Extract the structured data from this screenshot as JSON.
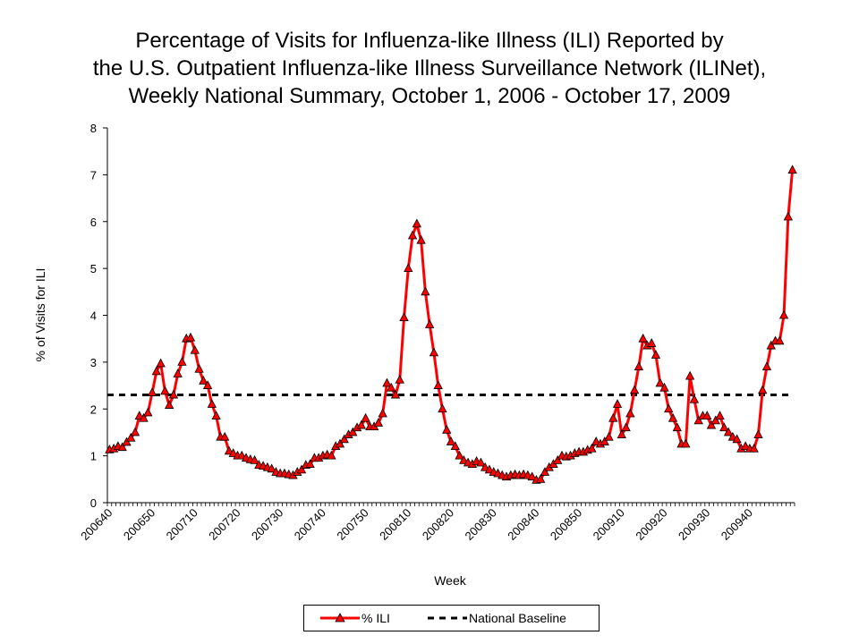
{
  "title": {
    "line1": "Percentage of Visits for Influenza-like Illness (ILI) Reported by",
    "line2": "the U.S. Outpatient Influenza-like Illness Surveillance Network (ILINet),",
    "line3": "Weekly National Summary, October 1, 2006 - October 17, 2009"
  },
  "colors": {
    "ili": "#ff0000",
    "baseline": "#000000"
  },
  "chart_data": {
    "type": "line",
    "title": "Percentage of Visits for Influenza-like Illness (ILI) Reported by the U.S. Outpatient Influenza-like Illness Surveillance Network (ILINet), Weekly National Summary, October 1, 2006 - October 17, 2009",
    "xlabel": "Week",
    "ylabel": "% of Visits for ILI",
    "ylim": [
      0,
      8
    ],
    "yticks": [
      "0",
      "1",
      "2",
      "3",
      "4",
      "5",
      "6",
      "7",
      "8"
    ],
    "xtick_labels": [
      "200640",
      "200650",
      "200710",
      "200720",
      "200730",
      "200740",
      "200750",
      "200810",
      "200820",
      "200830",
      "200840",
      "200850",
      "200910",
      "200920",
      "200930",
      "200940"
    ],
    "grid": false,
    "legend_position": "bottom",
    "series": [
      {
        "name": "% ILI",
        "marker": "triangle",
        "values": [
          1.13,
          1.15,
          1.2,
          1.18,
          1.29,
          1.38,
          1.5,
          1.85,
          1.8,
          1.92,
          2.35,
          2.8,
          2.97,
          2.38,
          2.08,
          2.3,
          2.75,
          3.0,
          3.5,
          3.52,
          3.25,
          2.85,
          2.6,
          2.5,
          2.1,
          1.85,
          1.4,
          1.4,
          1.1,
          1.05,
          1.0,
          1.0,
          0.95,
          0.92,
          0.9,
          0.8,
          0.78,
          0.75,
          0.72,
          0.65,
          0.62,
          0.62,
          0.6,
          0.58,
          0.65,
          0.7,
          0.8,
          0.82,
          0.95,
          0.95,
          1.0,
          1.02,
          1.0,
          1.2,
          1.25,
          1.35,
          1.45,
          1.5,
          1.6,
          1.65,
          1.8,
          1.62,
          1.62,
          1.7,
          1.9,
          2.55,
          2.45,
          2.3,
          2.62,
          3.95,
          5.0,
          5.7,
          5.95,
          5.6,
          4.5,
          3.8,
          3.2,
          2.5,
          2.0,
          1.55,
          1.3,
          1.2,
          1.0,
          0.9,
          0.85,
          0.82,
          0.88,
          0.85,
          0.75,
          0.7,
          0.65,
          0.62,
          0.58,
          0.55,
          0.58,
          0.6,
          0.58,
          0.6,
          0.58,
          0.55,
          0.48,
          0.5,
          0.65,
          0.75,
          0.82,
          0.9,
          1.0,
          0.98,
          1.0,
          1.05,
          1.08,
          1.08,
          1.12,
          1.15,
          1.3,
          1.25,
          1.3,
          1.4,
          1.8,
          2.1,
          1.45,
          1.6,
          1.9,
          2.4,
          2.9,
          3.5,
          3.35,
          3.4,
          3.15,
          2.55,
          2.45,
          2.0,
          1.8,
          1.6,
          1.25,
          1.25,
          2.7,
          2.2,
          1.75,
          1.85,
          1.85,
          1.65,
          1.75,
          1.85,
          1.6,
          1.5,
          1.4,
          1.35,
          1.15,
          1.2,
          1.15,
          1.15,
          1.45,
          2.4,
          2.9,
          3.35,
          3.45,
          3.45,
          4.0,
          6.1,
          7.1
        ]
      },
      {
        "name": "National Baseline",
        "value": 2.3
      }
    ]
  },
  "legend": {
    "ili_label": "% ILI",
    "baseline_label": "National Baseline"
  }
}
